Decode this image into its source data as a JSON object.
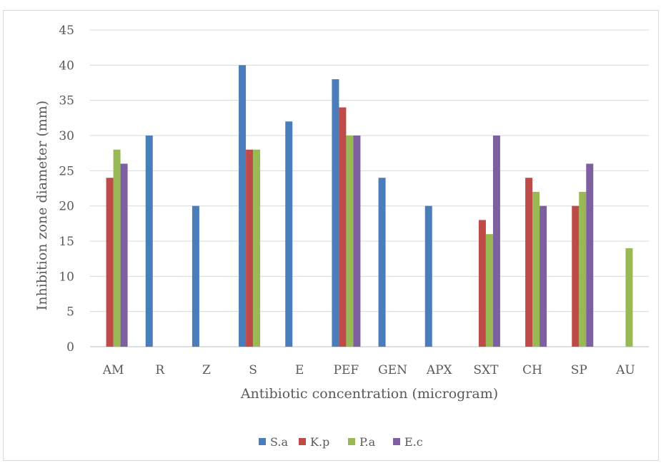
{
  "chart_data": {
    "type": "bar",
    "title": "",
    "xlabel": "Antibiotic concentration (microgram)",
    "ylabel": "Inhibition zone diameter (mm)",
    "ylim": [
      0,
      45
    ],
    "yticks": [
      0,
      5,
      10,
      15,
      20,
      25,
      30,
      35,
      40,
      45
    ],
    "grid": true,
    "legend_position": "bottom",
    "categories": [
      "AM",
      "R",
      "Z",
      "S",
      "E",
      "PEF",
      "GEN",
      "APX",
      "SXT",
      "CH",
      "SP",
      "AU"
    ],
    "series": [
      {
        "name": "S.a",
        "color": "#4a7ebb",
        "values": [
          0,
          30,
          20,
          40,
          32,
          38,
          24,
          20,
          0,
          0,
          0,
          0
        ]
      },
      {
        "name": "K.p",
        "color": "#be4b48",
        "values": [
          24,
          0,
          0,
          28,
          0,
          34,
          0,
          0,
          18,
          24,
          20,
          0
        ]
      },
      {
        "name": "P.a",
        "color": "#98b954",
        "values": [
          28,
          0,
          0,
          28,
          0,
          30,
          0,
          0,
          16,
          22,
          22,
          14
        ]
      },
      {
        "name": "E.c",
        "color": "#7d60a0",
        "values": [
          26,
          0,
          0,
          0,
          0,
          30,
          0,
          0,
          30,
          20,
          26,
          0
        ]
      }
    ]
  }
}
